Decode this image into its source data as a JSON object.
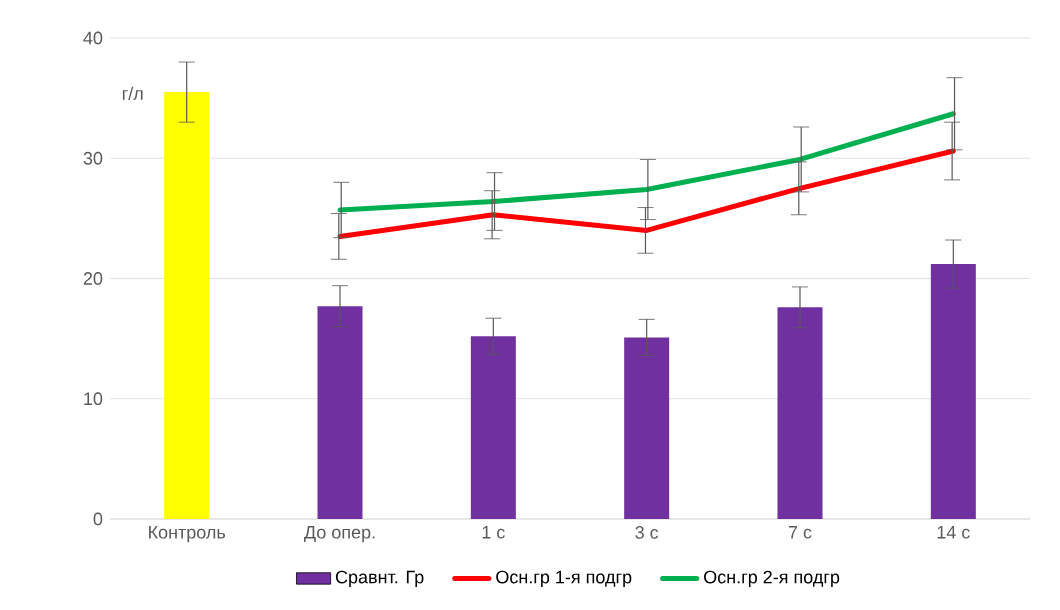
{
  "chart_data": {
    "type": "bar",
    "ylabel": "г/л",
    "categories": [
      "Контроль",
      "До опер.",
      "1 с",
      "3 с",
      "7 с",
      "14 с"
    ],
    "series": [
      {
        "name": "Сравнт. Гр",
        "color": "#7030a0",
        "colors": [
          "#ffff00",
          "#7030a0",
          "#7030a0",
          "#7030a0",
          "#7030a0",
          "#7030a0"
        ],
        "values": [
          35.5,
          17.7,
          15.2,
          15.1,
          17.6,
          21.2
        ],
        "errors": [
          2.5,
          1.7,
          1.5,
          1.5,
          1.7,
          2.0
        ]
      },
      {
        "name": "Осн.гр 1-я подгр",
        "type": "line",
        "color": "#ff0000",
        "values": [
          null,
          23.5,
          25.3,
          24.0,
          27.5,
          30.6
        ],
        "errors": [
          null,
          1.9,
          2.0,
          1.9,
          2.2,
          2.4
        ]
      },
      {
        "name": "Осн.гр 2-я подгр",
        "type": "line",
        "color": "#00b050",
        "values": [
          null,
          25.7,
          26.4,
          27.4,
          29.9,
          33.7
        ],
        "errors": [
          null,
          2.3,
          2.4,
          2.5,
          2.7,
          3.0
        ]
      }
    ],
    "ylim": [
      0,
      40
    ],
    "yticks": [
      0,
      10,
      20,
      30,
      40
    ],
    "grid": "y",
    "legend": "bottom",
    "marker": "none",
    "line_style": "solid"
  }
}
